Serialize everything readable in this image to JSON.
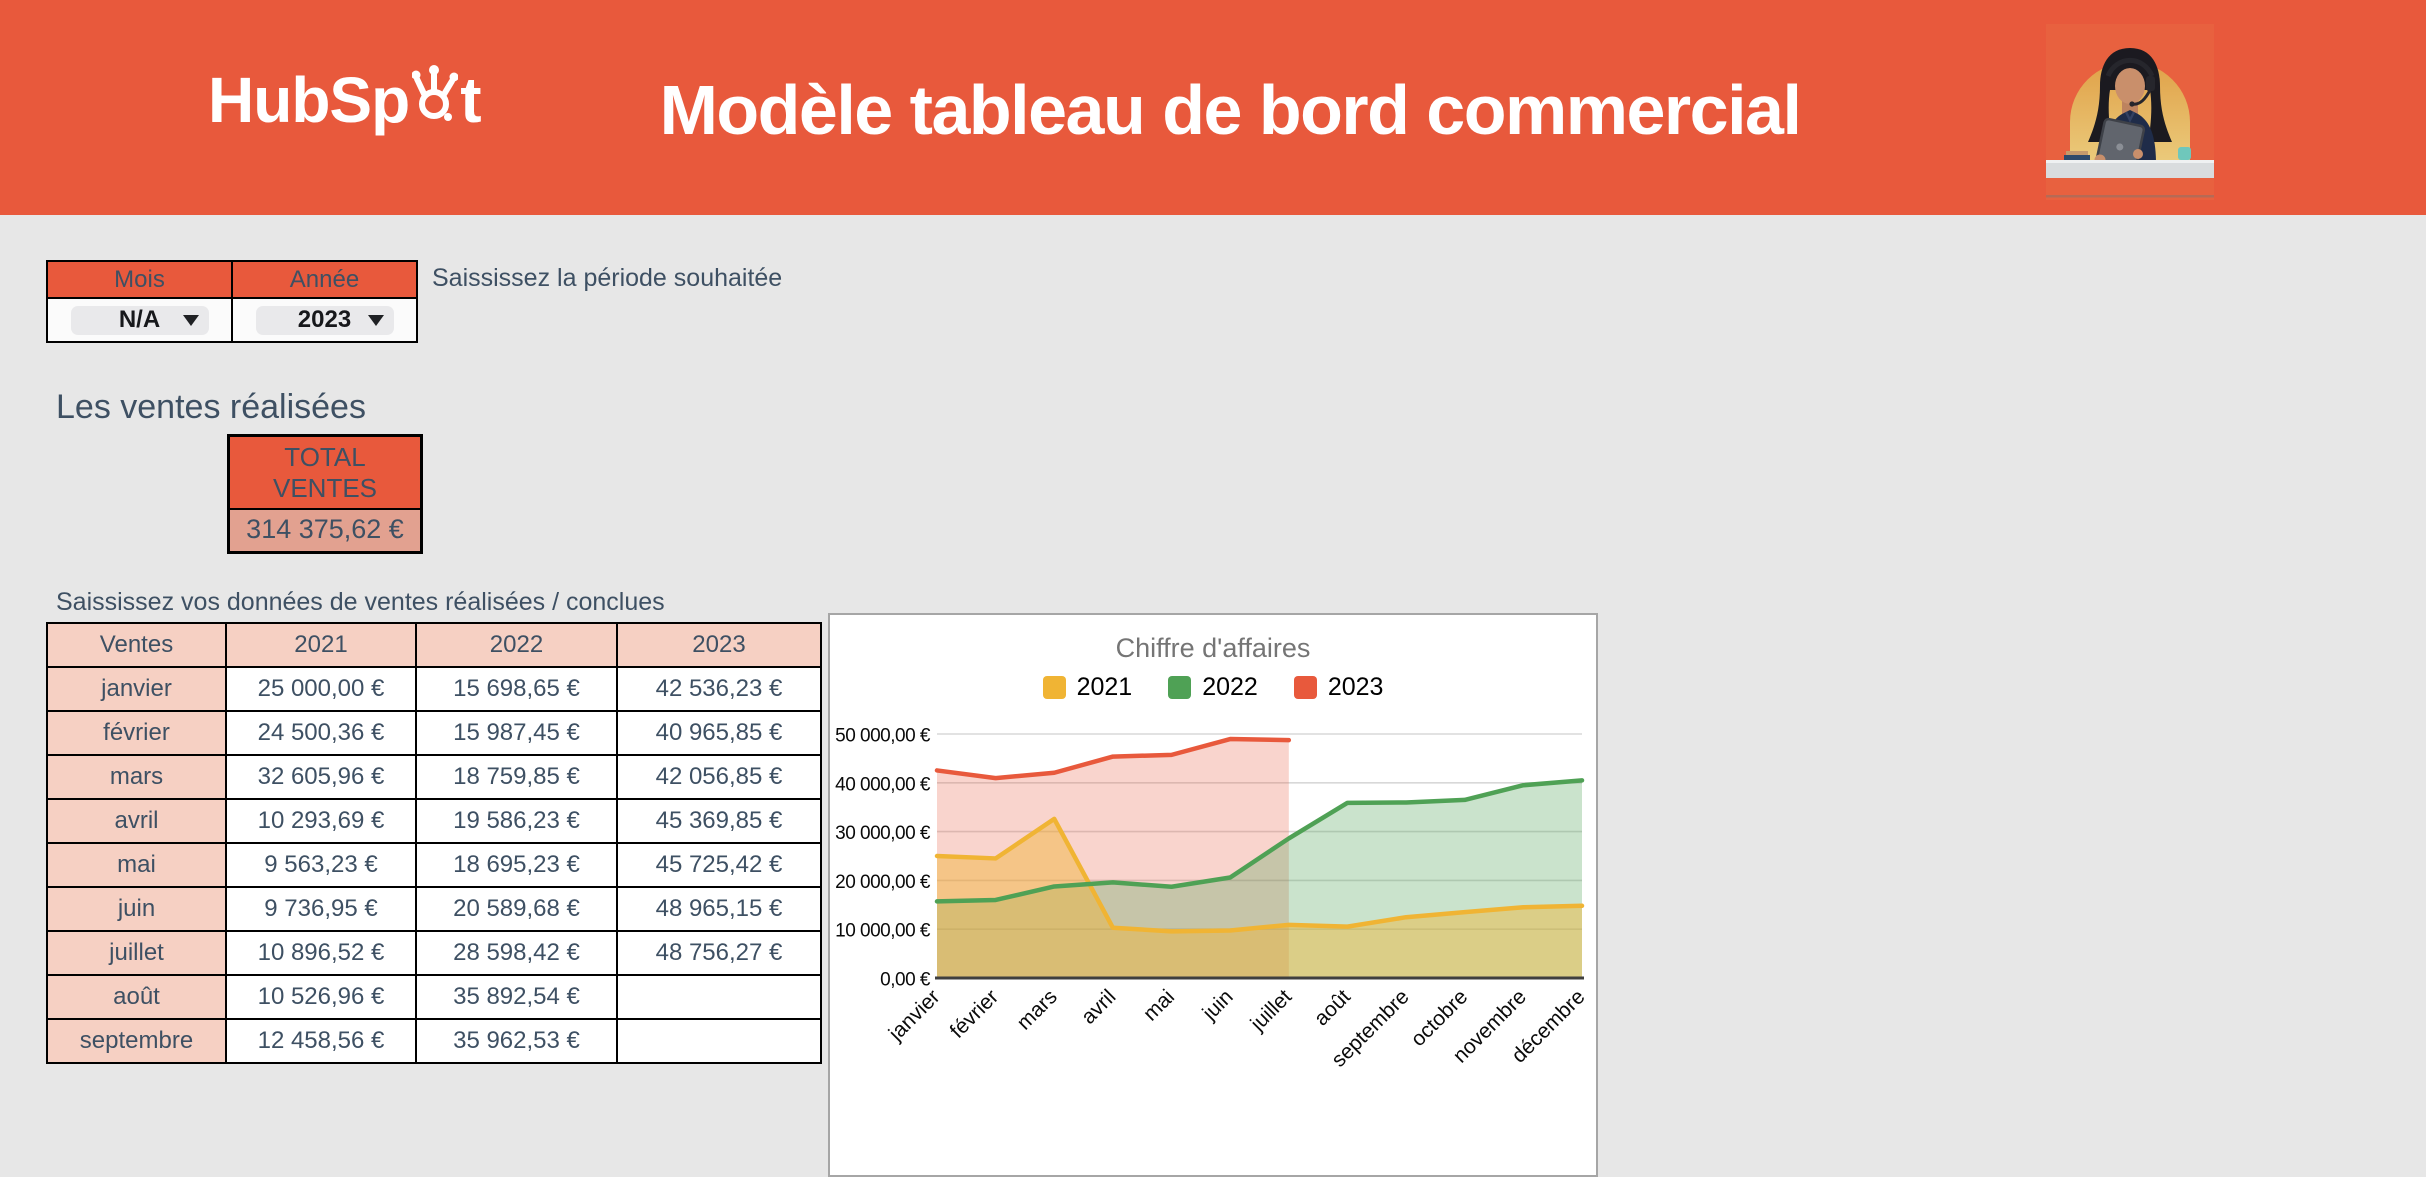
{
  "header": {
    "logo": {
      "full": "HubSpot",
      "before_sprocket": "HubSp",
      "after_sprocket": "t"
    },
    "title": "Modèle tableau de bord commercial"
  },
  "period_selector": {
    "mois_label": "Mois",
    "annee_label": "Année",
    "mois_value": "N/A",
    "annee_value": "2023",
    "hint": "Saississez la période souhaitée"
  },
  "sales": {
    "heading": "Les ventes réalisées",
    "total_label": "TOTAL VENTES",
    "total_value": "314 375,62 €",
    "table_hint": "Saississez vos données de ventes réalisées / conclues",
    "table_headers": [
      "Ventes",
      "2021",
      "2022",
      "2023"
    ],
    "rows": [
      [
        "janvier",
        "25 000,00 €",
        "15 698,65 €",
        "42 536,23 €"
      ],
      [
        "février",
        "24 500,36 €",
        "15 987,45 €",
        "40 965,85 €"
      ],
      [
        "mars",
        "32 605,96 €",
        "18 759,85 €",
        "42 056,85 €"
      ],
      [
        "avril",
        "10 293,69 €",
        "19 586,23 €",
        "45 369,85 €"
      ],
      [
        "mai",
        "9 563,23 €",
        "18 695,23 €",
        "45 725,42 €"
      ],
      [
        "juin",
        "9 736,95 €",
        "20 589,68 €",
        "48 965,15 €"
      ],
      [
        "juillet",
        "10 896,52 €",
        "28 598,42 €",
        "48 756,27 €"
      ],
      [
        "août",
        "10 526,96 €",
        "35 892,54 €",
        ""
      ],
      [
        "septembre",
        "12 458,56 €",
        "35 962,53 €",
        ""
      ]
    ]
  },
  "chart_data": {
    "type": "area",
    "title": "Chiffre d'affaires",
    "categories": [
      "janvier",
      "février",
      "mars",
      "avril",
      "mai",
      "juin",
      "juillet",
      "août",
      "septembre",
      "octobre",
      "novembre",
      "décembre"
    ],
    "series": [
      {
        "name": "2021",
        "color": "#F0B434",
        "values": [
          25000,
          24500.36,
          32605.96,
          10293.69,
          9563.23,
          9736.95,
          10896.52,
          10526.96,
          12458.56,
          13500,
          14500,
          14800
        ]
      },
      {
        "name": "2022",
        "color": "#4FA155",
        "values": [
          15698.65,
          15987.45,
          18759.85,
          19586.23,
          18695.23,
          20589.68,
          28598.42,
          35892.54,
          35962.53,
          36500,
          39500,
          40500
        ]
      },
      {
        "name": "2023",
        "color": "#E8593C",
        "values": [
          42536.23,
          40965.85,
          42056.85,
          45369.85,
          45725.42,
          48965.15,
          48756.27,
          null,
          null,
          null,
          null,
          null
        ]
      }
    ],
    "ylim": [
      0,
      50000
    ],
    "y_tick_labels": [
      "0,00 €",
      "10 000,00 €",
      "20 000,00 €",
      "30 000,00 €",
      "40 000,00 €",
      "50 000,00 €"
    ],
    "legend_position": "top",
    "gridlines": true
  },
  "colors": {
    "accent_orange": "#E8593C",
    "cell_pink": "#F6D0C3",
    "total_salmon": "#E2A190",
    "slate_text": "#3E5063",
    "page_bg": "#E7E7E7"
  }
}
